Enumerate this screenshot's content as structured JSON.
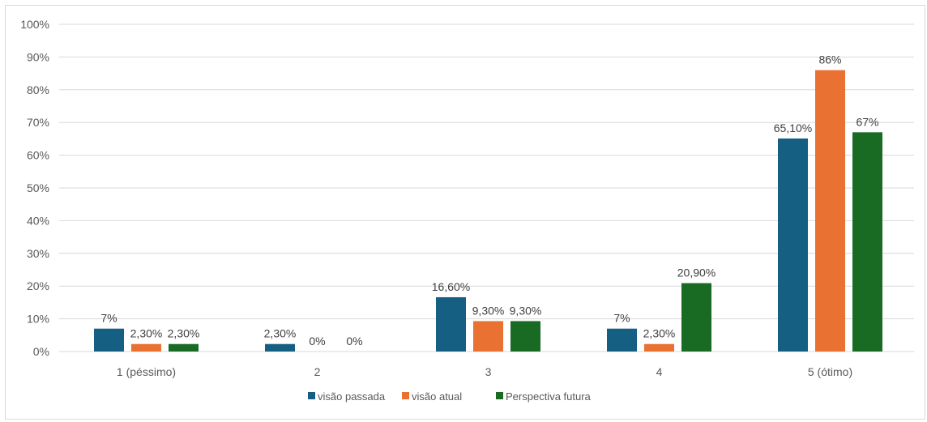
{
  "chart_data": {
    "type": "bar",
    "title": "",
    "xlabel": "",
    "ylabel": "",
    "ylim": [
      0,
      100
    ],
    "yticks": [
      "0%",
      "10%",
      "20%",
      "30%",
      "40%",
      "50%",
      "60%",
      "70%",
      "80%",
      "90%",
      "100%"
    ],
    "grid": true,
    "legend_position": "bottom",
    "categories": [
      "1 (péssimo)",
      "2",
      "3",
      "4",
      "5 (ótimo)"
    ],
    "series": [
      {
        "name": "visão passada",
        "color": "#156082",
        "values": [
          7,
          2.3,
          16.6,
          7,
          65.1
        ],
        "labels": [
          "7%",
          "2,30%",
          "16,60%",
          "7%",
          "65,10%"
        ]
      },
      {
        "name": "visão atual",
        "color": "#E97132",
        "values": [
          2.3,
          0,
          9.3,
          2.3,
          86
        ],
        "labels": [
          "2,30%",
          "0%",
          "9,30%",
          "2,30%",
          "86%"
        ]
      },
      {
        "name": "Perspectiva futura",
        "color": "#196B24",
        "values": [
          2.3,
          0,
          9.3,
          20.9,
          67
        ],
        "labels": [
          "2,30%",
          "0%",
          "9,30%",
          "20,90%",
          "67%"
        ]
      }
    ]
  }
}
